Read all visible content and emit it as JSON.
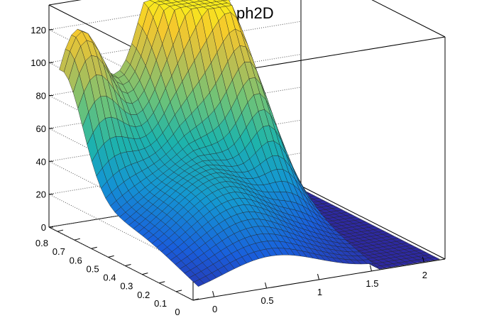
{
  "chart_data": {
    "type": "surface3d",
    "title": "Graph2D",
    "xlabel": "",
    "ylabel": "",
    "zlabel": "",
    "xlim": [
      -0.2,
      2.2
    ],
    "ylim": [
      0,
      0.85
    ],
    "zlim": [
      0,
      135
    ],
    "x_ticks": [
      "0",
      "0.5",
      "1",
      "1.5",
      "2"
    ],
    "y_ticks": [
      "0",
      "0.1",
      "0.2",
      "0.3",
      "0.4",
      "0.5",
      "0.6",
      "0.7",
      "0.8"
    ],
    "z_ticks": [
      "0",
      "20",
      "40",
      "60",
      "80",
      "100",
      "120"
    ],
    "grid": true,
    "colormap": "kBird (blue-green-yellow)",
    "features": [
      {
        "description": "peak near x=0.0, y=0.8",
        "height": 112
      },
      {
        "description": "broad plateau peak near x=1.0, y=0.8",
        "height": 130
      },
      {
        "description": "secondary ridge near x=1.2, y=0.5",
        "height": 95
      },
      {
        "description": "flat region x>1.55",
        "height": 0
      }
    ]
  }
}
